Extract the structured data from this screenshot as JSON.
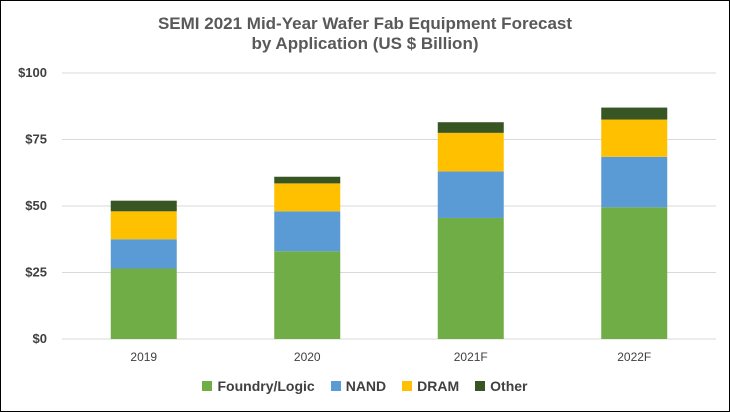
{
  "chart_data": {
    "type": "bar",
    "stacked": true,
    "title": "SEMI 2021 Mid-Year Wafer Fab Equipment Forecast",
    "subtitle": "by Application (US $ Billion)",
    "categories": [
      "2019",
      "2020",
      "2021F",
      "2022F"
    ],
    "series": [
      {
        "name": "Foundry/Logic",
        "color": "#70ad47",
        "values": [
          26.5,
          33.0,
          45.5,
          49.5
        ]
      },
      {
        "name": "NAND",
        "color": "#5b9bd5",
        "values": [
          11.0,
          15.0,
          17.5,
          19.0
        ]
      },
      {
        "name": "DRAM",
        "color": "#ffc000",
        "values": [
          10.5,
          10.5,
          14.5,
          14.0
        ]
      },
      {
        "name": "Other",
        "color": "#375623",
        "values": [
          4.0,
          2.5,
          4.0,
          4.5
        ]
      }
    ],
    "yticks": [
      "$0",
      "$25",
      "$50",
      "$75",
      "$100"
    ],
    "ylim": [
      0,
      100
    ],
    "grid": true,
    "legend_position": "bottom"
  }
}
